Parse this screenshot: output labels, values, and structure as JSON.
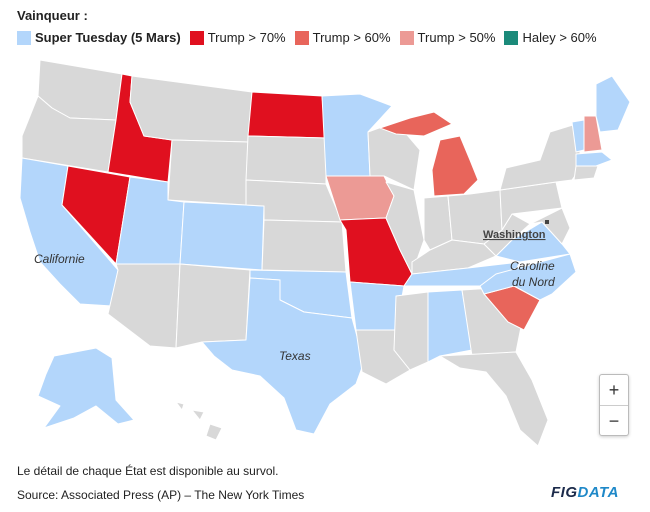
{
  "header": {
    "title": "Vainqueur :"
  },
  "legend": [
    {
      "label": "Super Tuesday (5 Mars)",
      "color": "#b3d6fb",
      "bold": true
    },
    {
      "label": "Trump > 70%",
      "color": "#e0101f"
    },
    {
      "label": "Trump > 60%",
      "color": "#e8655b"
    },
    {
      "label": "Trump > 50%",
      "color": "#ec9a95"
    },
    {
      "label": "Haley > 60%",
      "color": "#1b8a7a"
    }
  ],
  "colors": {
    "default": "#d8d8d8",
    "super_tuesday": "#b3d6fb",
    "trump70": "#e0101f",
    "trump60": "#e8655b",
    "trump50": "#ec9a95",
    "haley60": "#1b8a7a",
    "border": "#ffffff"
  },
  "map": {
    "labels": {
      "california": "Californie",
      "texas": "Texas",
      "caroline_line1": "Caroline",
      "caroline_line2": "du Nord",
      "washington": "Washington"
    }
  },
  "zoom": {
    "in": "+",
    "out": "−"
  },
  "footer": {
    "note": "Le détail de chaque État est disponible au survol.",
    "source": "Source: Associated Press (AP) – The New York Times",
    "brand_part1": "FIG",
    "brand_part2": "DATA"
  }
}
